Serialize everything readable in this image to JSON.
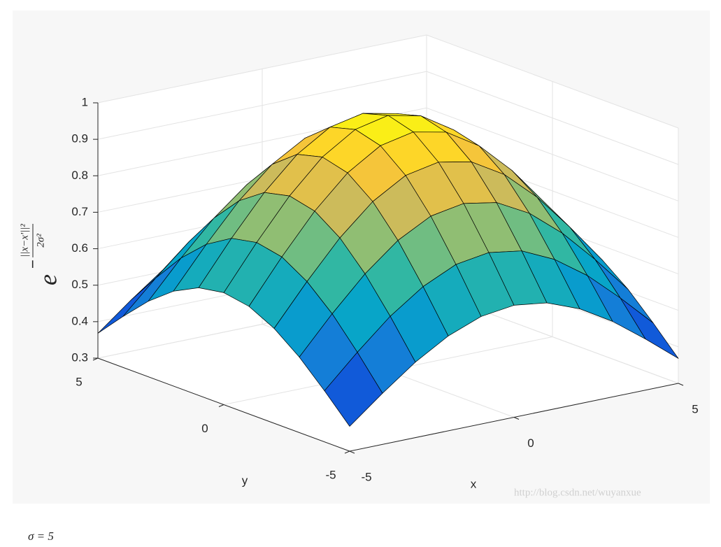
{
  "chart_data": {
    "type": "surface",
    "x": [
      -5,
      -4,
      -3,
      -2,
      -1,
      0,
      1,
      2,
      3,
      4,
      5
    ],
    "y": [
      -5,
      -4,
      -3,
      -2,
      -1,
      0,
      1,
      2,
      3,
      4,
      5
    ],
    "z": [
      [
        0.368,
        0.44,
        0.507,
        0.56,
        0.595,
        0.607,
        0.595,
        0.56,
        0.507,
        0.44,
        0.368
      ],
      [
        0.44,
        0.527,
        0.607,
        0.67,
        0.712,
        0.726,
        0.712,
        0.67,
        0.607,
        0.527,
        0.44
      ],
      [
        0.507,
        0.607,
        0.698,
        0.771,
        0.819,
        0.835,
        0.819,
        0.771,
        0.698,
        0.607,
        0.507
      ],
      [
        0.56,
        0.67,
        0.771,
        0.852,
        0.905,
        0.923,
        0.905,
        0.852,
        0.771,
        0.67,
        0.56
      ],
      [
        0.595,
        0.712,
        0.819,
        0.905,
        0.961,
        0.98,
        0.961,
        0.905,
        0.819,
        0.712,
        0.595
      ],
      [
        0.607,
        0.726,
        0.835,
        0.923,
        0.98,
        1,
        0.98,
        0.923,
        0.835,
        0.726,
        0.607
      ],
      [
        0.595,
        0.712,
        0.819,
        0.905,
        0.961,
        0.98,
        0.961,
        0.905,
        0.819,
        0.712,
        0.595
      ],
      [
        0.56,
        0.67,
        0.771,
        0.852,
        0.905,
        0.923,
        0.905,
        0.852,
        0.771,
        0.67,
        0.56
      ],
      [
        0.507,
        0.607,
        0.698,
        0.771,
        0.819,
        0.835,
        0.819,
        0.771,
        0.698,
        0.607,
        0.507
      ],
      [
        0.44,
        0.527,
        0.607,
        0.67,
        0.712,
        0.726,
        0.712,
        0.67,
        0.607,
        0.527,
        0.44
      ],
      [
        0.368,
        0.44,
        0.507,
        0.56,
        0.595,
        0.607,
        0.595,
        0.56,
        0.507,
        0.44,
        0.368
      ]
    ],
    "xlim": [
      -5,
      5
    ],
    "ylim": [
      -5,
      5
    ],
    "zlim": [
      0.3,
      1
    ],
    "xticks": [
      -5,
      0,
      5
    ],
    "yticks": [
      -5,
      0,
      5
    ],
    "zticks": [
      0.3,
      0.4,
      0.5,
      0.6,
      0.7,
      0.8,
      0.9,
      1
    ],
    "xlabel": "x",
    "ylabel": "y",
    "zlabel": {
      "base": "e",
      "sign": "−",
      "numerator": "||x−x'||²",
      "denominator": "2σ²"
    },
    "colormap": "parula",
    "edge_color": "#000000",
    "grid": true
  },
  "watermark": "http://blog.csdn.net/wuyanxue",
  "caption": "σ = 5"
}
